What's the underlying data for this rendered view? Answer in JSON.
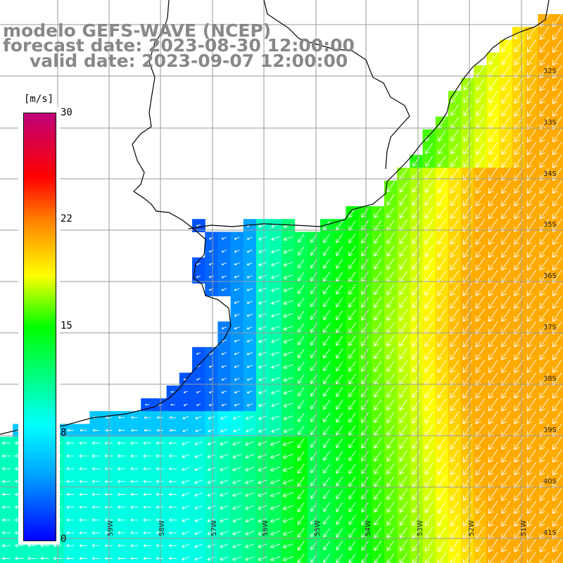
{
  "title": {
    "line1": "modelo GEFS-WAVE (NCEP)",
    "line2": "forecast date: 2023-08-30 12:00:00",
    "line3": "valid date: 2023-09-07 12:00:00"
  },
  "colorbar": {
    "unit": "[m/s]",
    "ticks": [
      "0",
      "8",
      "15",
      "22",
      "30"
    ],
    "range": [
      0,
      30
    ],
    "colors": [
      "#0000ff",
      "#00a0ff",
      "#00ffff",
      "#00ff00",
      "#ffff00",
      "#ff8000",
      "#ff0000",
      "#c0007a"
    ]
  },
  "map": {
    "lat_labels": [
      "32S",
      "33S",
      "34S",
      "35S",
      "36S",
      "37S",
      "38S",
      "39S",
      "40S",
      "41S"
    ],
    "lon_labels": [
      "59W",
      "58W",
      "57W",
      "56W",
      "55W",
      "54W",
      "53W",
      "52W",
      "51W"
    ],
    "land_color": "#ffffff",
    "grid_color": "#9a9a9a",
    "arrow_color": "#ffffff",
    "coast_color": "#000000"
  }
}
